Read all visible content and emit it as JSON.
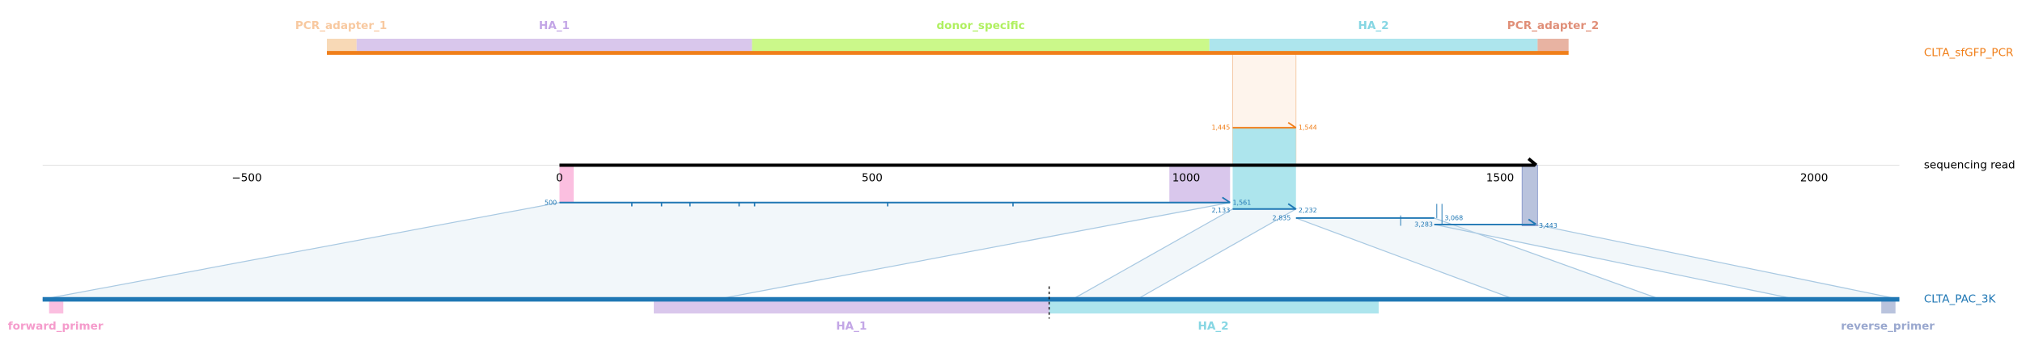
{
  "top_reference": {
    "name": "CLTA_sfGFP_PCR",
    "features": [
      "PCR_adapter_1",
      "HA_1",
      "donor_specific",
      "HA_2",
      "PCR_adapter_2"
    ],
    "alignment": {
      "start": "1,445",
      "end": "1,544"
    }
  },
  "read": {
    "name": "sequencing read",
    "axis_ticks": [
      "−500",
      "0",
      "500",
      "1000",
      "1500",
      "2000"
    ],
    "alignments": [
      {
        "start": "500",
        "end": "1,561"
      },
      {
        "start": "2,133",
        "end": "2,232"
      },
      {
        "start": "2,835",
        "end": "3,068"
      },
      {
        "start": "3,283",
        "end": "3,443"
      }
    ]
  },
  "bottom_reference": {
    "name": "CLTA_PAC_3K",
    "features": [
      "forward_primer",
      "HA_1",
      "HA_2",
      "reverse_primer"
    ]
  }
}
